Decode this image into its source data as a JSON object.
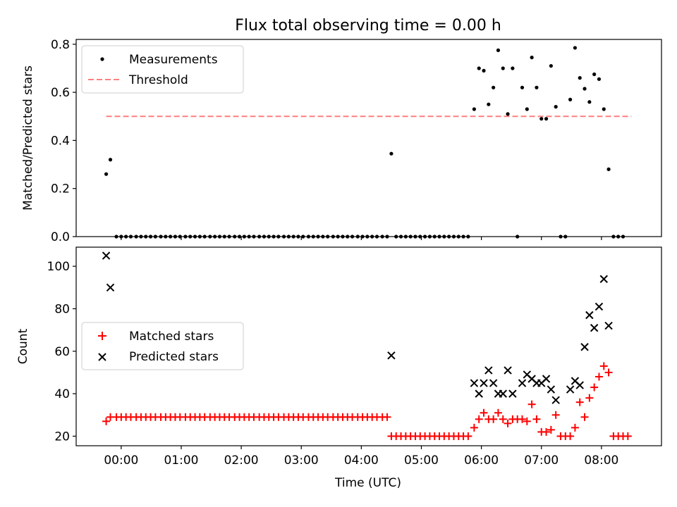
{
  "chart_data": [
    {
      "type": "scatter",
      "title": "Flux total observing time = 0.00 h",
      "xlabel": "",
      "ylabel": "Matched/Predicted stars",
      "xlim": [
        -0.75,
        9.0
      ],
      "ylim": [
        0,
        0.82
      ],
      "y_ticks": [
        0.0,
        0.2,
        0.4,
        0.6,
        0.8
      ],
      "y_tick_labels": [
        "0.0",
        "0.2",
        "0.4",
        "0.6",
        "0.8"
      ],
      "legend": {
        "placement": "upper-left",
        "entries": [
          "Measurements",
          "Threshold"
        ]
      },
      "threshold": {
        "name": "Threshold",
        "value": 0.5,
        "x_start": -0.25,
        "x_end": 8.5,
        "color": "#ff7f7f"
      },
      "series": [
        {
          "name": "Measurements",
          "color": "#000000",
          "points": [
            [
              -0.25,
              0.26
            ],
            [
              -0.18,
              0.32
            ],
            [
              -0.08,
              0.0
            ],
            [
              0.0,
              0.0
            ],
            [
              0.08,
              0.0
            ],
            [
              0.16,
              0.0
            ],
            [
              0.25,
              0.0
            ],
            [
              0.33,
              0.0
            ],
            [
              0.41,
              0.0
            ],
            [
              0.49,
              0.0
            ],
            [
              0.57,
              0.0
            ],
            [
              0.66,
              0.0
            ],
            [
              0.74,
              0.0
            ],
            [
              0.82,
              0.0
            ],
            [
              0.9,
              0.0
            ],
            [
              0.98,
              0.0
            ],
            [
              1.07,
              0.0
            ],
            [
              1.15,
              0.0
            ],
            [
              1.23,
              0.0
            ],
            [
              1.31,
              0.0
            ],
            [
              1.39,
              0.0
            ],
            [
              1.48,
              0.0
            ],
            [
              1.56,
              0.0
            ],
            [
              1.64,
              0.0
            ],
            [
              1.72,
              0.0
            ],
            [
              1.8,
              0.0
            ],
            [
              1.89,
              0.0
            ],
            [
              1.97,
              0.0
            ],
            [
              2.05,
              0.0
            ],
            [
              2.13,
              0.0
            ],
            [
              2.21,
              0.0
            ],
            [
              2.3,
              0.0
            ],
            [
              2.38,
              0.0
            ],
            [
              2.46,
              0.0
            ],
            [
              2.54,
              0.0
            ],
            [
              2.62,
              0.0
            ],
            [
              2.71,
              0.0
            ],
            [
              2.79,
              0.0
            ],
            [
              2.87,
              0.0
            ],
            [
              2.95,
              0.0
            ],
            [
              3.03,
              0.0
            ],
            [
              3.12,
              0.0
            ],
            [
              3.2,
              0.0
            ],
            [
              3.28,
              0.0
            ],
            [
              3.36,
              0.0
            ],
            [
              3.44,
              0.0
            ],
            [
              3.53,
              0.0
            ],
            [
              3.61,
              0.0
            ],
            [
              3.69,
              0.0
            ],
            [
              3.77,
              0.0
            ],
            [
              3.85,
              0.0
            ],
            [
              3.94,
              0.0
            ],
            [
              4.02,
              0.0
            ],
            [
              4.1,
              0.0
            ],
            [
              4.18,
              0.0
            ],
            [
              4.26,
              0.0
            ],
            [
              4.35,
              0.0
            ],
            [
              4.43,
              0.0
            ],
            [
              4.5,
              0.345
            ],
            [
              4.58,
              0.0
            ],
            [
              4.66,
              0.0
            ],
            [
              4.74,
              0.0
            ],
            [
              4.82,
              0.0
            ],
            [
              4.9,
              0.0
            ],
            [
              4.98,
              0.0
            ],
            [
              5.06,
              0.0
            ],
            [
              5.14,
              0.0
            ],
            [
              5.22,
              0.0
            ],
            [
              5.3,
              0.0
            ],
            [
              5.38,
              0.0
            ],
            [
              5.46,
              0.0
            ],
            [
              5.54,
              0.0
            ],
            [
              5.62,
              0.0
            ],
            [
              5.7,
              0.0
            ],
            [
              5.78,
              0.0
            ],
            [
              5.88,
              0.53
            ],
            [
              5.96,
              0.7
            ],
            [
              6.04,
              0.69
            ],
            [
              6.12,
              0.55
            ],
            [
              6.2,
              0.62
            ],
            [
              6.28,
              0.775
            ],
            [
              6.36,
              0.7
            ],
            [
              6.44,
              0.51
            ],
            [
              6.52,
              0.7
            ],
            [
              6.6,
              0.0
            ],
            [
              6.68,
              0.62
            ],
            [
              6.76,
              0.53
            ],
            [
              6.84,
              0.745
            ],
            [
              6.92,
              0.62
            ],
            [
              7.0,
              0.49
            ],
            [
              7.08,
              0.49
            ],
            [
              7.16,
              0.71
            ],
            [
              7.24,
              0.54
            ],
            [
              7.32,
              0.0
            ],
            [
              7.4,
              0.0
            ],
            [
              7.48,
              0.57
            ],
            [
              7.56,
              0.785
            ],
            [
              7.64,
              0.66
            ],
            [
              7.72,
              0.615
            ],
            [
              7.8,
              0.56
            ],
            [
              7.88,
              0.675
            ],
            [
              7.96,
              0.655
            ],
            [
              8.04,
              0.53
            ],
            [
              8.12,
              0.28
            ],
            [
              8.2,
              0.0
            ],
            [
              8.28,
              0.0
            ],
            [
              8.36,
              0.0
            ]
          ]
        }
      ]
    },
    {
      "type": "scatter",
      "title": "",
      "xlabel": "Time (UTC)",
      "ylabel": "Count",
      "xlim": [
        -0.75,
        9.0
      ],
      "ylim": [
        15.5,
        109
      ],
      "y_ticks": [
        20,
        40,
        60,
        80,
        100
      ],
      "y_tick_labels": [
        "20",
        "40",
        "60",
        "80",
        "100"
      ],
      "x_ticks": [
        0,
        1,
        2,
        3,
        4,
        5,
        6,
        7,
        8
      ],
      "x_tick_labels": [
        "00:00",
        "01:00",
        "02:00",
        "03:00",
        "04:00",
        "05:00",
        "06:00",
        "07:00",
        "08:00"
      ],
      "legend": {
        "placement": "center-left",
        "entries": [
          "Matched stars",
          "Predicted stars"
        ]
      },
      "series": [
        {
          "name": "Matched stars",
          "color": "#ff0000",
          "marker": "plus",
          "points": [
            [
              -0.25,
              27
            ],
            [
              -0.18,
              29
            ],
            [
              -0.08,
              29
            ],
            [
              0.0,
              29
            ],
            [
              0.08,
              29
            ],
            [
              0.16,
              29
            ],
            [
              0.25,
              29
            ],
            [
              0.33,
              29
            ],
            [
              0.41,
              29
            ],
            [
              0.49,
              29
            ],
            [
              0.57,
              29
            ],
            [
              0.66,
              29
            ],
            [
              0.74,
              29
            ],
            [
              0.82,
              29
            ],
            [
              0.9,
              29
            ],
            [
              0.98,
              29
            ],
            [
              1.07,
              29
            ],
            [
              1.15,
              29
            ],
            [
              1.23,
              29
            ],
            [
              1.31,
              29
            ],
            [
              1.39,
              29
            ],
            [
              1.48,
              29
            ],
            [
              1.56,
              29
            ],
            [
              1.64,
              29
            ],
            [
              1.72,
              29
            ],
            [
              1.8,
              29
            ],
            [
              1.89,
              29
            ],
            [
              1.97,
              29
            ],
            [
              2.05,
              29
            ],
            [
              2.13,
              29
            ],
            [
              2.21,
              29
            ],
            [
              2.3,
              29
            ],
            [
              2.38,
              29
            ],
            [
              2.46,
              29
            ],
            [
              2.54,
              29
            ],
            [
              2.62,
              29
            ],
            [
              2.71,
              29
            ],
            [
              2.79,
              29
            ],
            [
              2.87,
              29
            ],
            [
              2.95,
              29
            ],
            [
              3.03,
              29
            ],
            [
              3.12,
              29
            ],
            [
              3.2,
              29
            ],
            [
              3.28,
              29
            ],
            [
              3.36,
              29
            ],
            [
              3.44,
              29
            ],
            [
              3.53,
              29
            ],
            [
              3.61,
              29
            ],
            [
              3.69,
              29
            ],
            [
              3.77,
              29
            ],
            [
              3.85,
              29
            ],
            [
              3.94,
              29
            ],
            [
              4.02,
              29
            ],
            [
              4.1,
              29
            ],
            [
              4.18,
              29
            ],
            [
              4.26,
              29
            ],
            [
              4.35,
              29
            ],
            [
              4.43,
              29
            ],
            [
              4.5,
              20
            ],
            [
              4.58,
              20
            ],
            [
              4.66,
              20
            ],
            [
              4.74,
              20
            ],
            [
              4.82,
              20
            ],
            [
              4.9,
              20
            ],
            [
              4.98,
              20
            ],
            [
              5.06,
              20
            ],
            [
              5.14,
              20
            ],
            [
              5.22,
              20
            ],
            [
              5.3,
              20
            ],
            [
              5.38,
              20
            ],
            [
              5.46,
              20
            ],
            [
              5.54,
              20
            ],
            [
              5.62,
              20
            ],
            [
              5.7,
              20
            ],
            [
              5.78,
              20
            ],
            [
              5.88,
              24
            ],
            [
              5.96,
              28
            ],
            [
              6.04,
              31
            ],
            [
              6.12,
              28
            ],
            [
              6.2,
              28
            ],
            [
              6.28,
              31
            ],
            [
              6.36,
              28
            ],
            [
              6.44,
              26
            ],
            [
              6.52,
              28
            ],
            [
              6.6,
              28
            ],
            [
              6.68,
              28
            ],
            [
              6.76,
              27
            ],
            [
              6.84,
              35
            ],
            [
              6.92,
              28
            ],
            [
              7.0,
              22
            ],
            [
              7.08,
              22
            ],
            [
              7.16,
              23
            ],
            [
              7.24,
              30
            ],
            [
              7.32,
              20
            ],
            [
              7.4,
              20
            ],
            [
              7.48,
              20
            ],
            [
              7.56,
              24
            ],
            [
              7.64,
              36
            ],
            [
              7.72,
              29
            ],
            [
              7.8,
              38
            ],
            [
              7.88,
              43
            ],
            [
              7.96,
              48
            ],
            [
              8.04,
              53
            ],
            [
              8.12,
              50
            ],
            [
              8.2,
              20
            ],
            [
              8.28,
              20
            ],
            [
              8.36,
              20
            ],
            [
              8.44,
              20
            ]
          ]
        },
        {
          "name": "Predicted stars",
          "color": "#000000",
          "marker": "x",
          "points": [
            [
              -0.25,
              105
            ],
            [
              -0.18,
              90
            ],
            [
              4.5,
              58
            ],
            [
              5.88,
              45
            ],
            [
              5.96,
              40
            ],
            [
              6.04,
              45
            ],
            [
              6.12,
              51
            ],
            [
              6.2,
              45
            ],
            [
              6.28,
              40
            ],
            [
              6.36,
              40
            ],
            [
              6.44,
              51
            ],
            [
              6.52,
              40
            ],
            [
              6.68,
              45
            ],
            [
              6.76,
              49
            ],
            [
              6.84,
              47
            ],
            [
              6.92,
              45
            ],
            [
              7.0,
              45
            ],
            [
              7.08,
              47
            ],
            [
              7.16,
              42
            ],
            [
              7.24,
              37
            ],
            [
              7.48,
              42
            ],
            [
              7.56,
              46
            ],
            [
              7.64,
              44
            ],
            [
              7.72,
              62
            ],
            [
              7.8,
              77
            ],
            [
              7.88,
              71
            ],
            [
              7.96,
              81
            ],
            [
              8.04,
              94
            ],
            [
              8.12,
              72
            ]
          ]
        }
      ]
    }
  ]
}
